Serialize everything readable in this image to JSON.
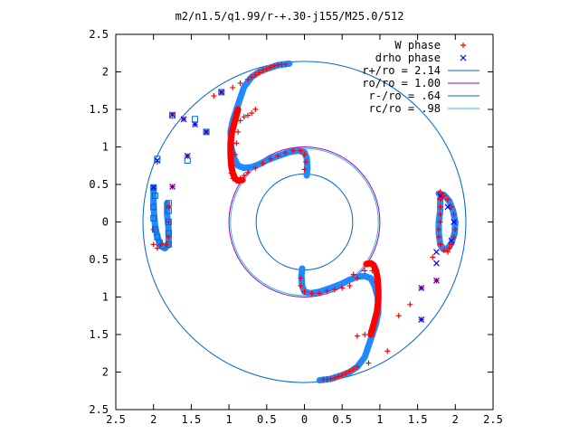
{
  "chart_data": {
    "type": "scatter",
    "title": "m2/n1.5/q1.99/r-+.30-j155/M25.0/512",
    "xlabel": "",
    "ylabel": "",
    "xlim": [
      -2.5,
      2.5
    ],
    "ylim": [
      -2.5,
      2.5
    ],
    "x_ticks": [
      {
        "value": -2.5,
        "label": "2.5"
      },
      {
        "value": -2,
        "label": "2"
      },
      {
        "value": -1.5,
        "label": "1.5"
      },
      {
        "value": -1,
        "label": "1"
      },
      {
        "value": -0.5,
        "label": "0.5"
      },
      {
        "value": 0,
        "label": "0"
      },
      {
        "value": 0.5,
        "label": "0.5"
      },
      {
        "value": 1,
        "label": "1"
      },
      {
        "value": 1.5,
        "label": "1.5"
      },
      {
        "value": 2,
        "label": "2"
      },
      {
        "value": 2.5,
        "label": "2.5"
      }
    ],
    "y_ticks": [
      {
        "value": 2.5,
        "label": "2.5"
      },
      {
        "value": 2,
        "label": "2"
      },
      {
        "value": 1.5,
        "label": "1.5"
      },
      {
        "value": 1,
        "label": "1"
      },
      {
        "value": 0.5,
        "label": "0.5"
      },
      {
        "value": 0,
        "label": "0"
      },
      {
        "value": -0.5,
        "label": "0.5"
      },
      {
        "value": -1,
        "label": "1"
      },
      {
        "value": -1.5,
        "label": "1.5"
      },
      {
        "value": -2,
        "label": "2"
      },
      {
        "value": -2.5,
        "label": "2.5"
      }
    ],
    "grid": false,
    "legend_position": "top-right",
    "series": [
      {
        "name": "W phase",
        "kind": "points",
        "marker": "plus",
        "color": "#ff0000",
        "points": [
          [
            -0.25,
            2.1
          ],
          [
            -0.3,
            2.1
          ],
          [
            -0.35,
            2.09
          ],
          [
            -0.4,
            2.08
          ],
          [
            -0.45,
            2.06
          ],
          [
            -0.5,
            2.04
          ],
          [
            -0.55,
            2.02
          ],
          [
            -0.6,
            1.99
          ],
          [
            -0.65,
            1.96
          ],
          [
            -0.7,
            1.93
          ],
          [
            -0.75,
            1.9
          ],
          [
            -0.85,
            1.85
          ],
          [
            -0.95,
            1.79
          ],
          [
            -1.1,
            1.73
          ],
          [
            -1.2,
            1.68
          ],
          [
            -1.3,
            1.2
          ],
          [
            -1.45,
            1.3
          ],
          [
            -1.6,
            1.37
          ],
          [
            -1.75,
            1.43
          ],
          [
            -1.55,
            0.88
          ],
          [
            -1.75,
            0.47
          ],
          [
            -1.95,
            0.8
          ],
          [
            -2.0,
            0.45
          ],
          [
            -0.65,
            1.5
          ],
          [
            -0.7,
            1.45
          ],
          [
            -0.75,
            1.42
          ],
          [
            -0.8,
            1.4
          ],
          [
            -0.85,
            1.35
          ],
          [
            -0.88,
            1.2
          ],
          [
            -0.9,
            1.05
          ],
          [
            -0.92,
            0.9
          ],
          [
            -0.95,
            0.75
          ],
          [
            -0.97,
            0.65
          ],
          [
            -0.95,
            0.58
          ],
          [
            -0.9,
            0.55
          ],
          [
            -0.85,
            0.58
          ],
          [
            -0.8,
            0.62
          ],
          [
            -0.75,
            0.66
          ],
          [
            -0.65,
            0.72
          ],
          [
            -0.55,
            0.78
          ],
          [
            -0.45,
            0.84
          ],
          [
            -0.35,
            0.88
          ],
          [
            -0.25,
            0.92
          ],
          [
            -0.15,
            0.95
          ],
          [
            -0.05,
            0.95
          ],
          [
            0.0,
            0.9
          ],
          [
            0.02,
            0.8
          ],
          [
            0.0,
            0.7
          ],
          [
            -1.8,
            0.2
          ],
          [
            -1.8,
            0.0
          ],
          [
            -1.8,
            -0.2
          ],
          [
            -1.82,
            -0.3
          ],
          [
            -2.0,
            -0.1
          ],
          [
            -2.0,
            -0.3
          ],
          [
            -1.95,
            -0.35
          ],
          [
            -1.9,
            -0.3
          ],
          [
            1.8,
            0.4
          ],
          [
            1.85,
            0.35
          ],
          [
            1.9,
            0.3
          ],
          [
            1.95,
            0.2
          ],
          [
            1.98,
            0.1
          ],
          [
            2.0,
            0.0
          ],
          [
            2.0,
            -0.1
          ],
          [
            1.98,
            -0.2
          ],
          [
            1.95,
            -0.3
          ],
          [
            1.92,
            -0.35
          ],
          [
            1.9,
            -0.4
          ],
          [
            1.85,
            -0.38
          ],
          [
            1.8,
            -0.3
          ],
          [
            1.78,
            -0.2
          ],
          [
            1.78,
            -0.1
          ],
          [
            1.8,
            0.0
          ],
          [
            1.8,
            0.1
          ],
          [
            1.8,
            0.2
          ],
          [
            1.8,
            0.3
          ],
          [
            1.7,
            -0.47
          ],
          [
            1.75,
            -0.78
          ],
          [
            1.55,
            -0.88
          ],
          [
            1.55,
            -1.3
          ],
          [
            1.4,
            -1.1
          ],
          [
            1.25,
            -1.25
          ],
          [
            1.1,
            -1.72
          ],
          [
            0.65,
            -0.7
          ],
          [
            0.7,
            -0.75
          ],
          [
            0.8,
            -0.65
          ],
          [
            0.9,
            -0.65
          ],
          [
            0.95,
            -0.8
          ],
          [
            0.98,
            -0.95
          ],
          [
            0.97,
            -1.1
          ],
          [
            0.95,
            -1.25
          ],
          [
            0.92,
            -1.38
          ],
          [
            0.88,
            -1.45
          ],
          [
            0.8,
            -1.5
          ],
          [
            0.7,
            -1.52
          ],
          [
            0.6,
            -0.85
          ],
          [
            0.5,
            -0.88
          ],
          [
            0.4,
            -0.9
          ],
          [
            0.3,
            -0.92
          ],
          [
            0.2,
            -0.95
          ],
          [
            0.1,
            -0.95
          ],
          [
            0.0,
            -0.93
          ],
          [
            -0.05,
            -0.85
          ],
          [
            -0.05,
            -0.75
          ],
          [
            0.25,
            -2.1
          ],
          [
            0.3,
            -2.1
          ],
          [
            0.35,
            -2.09
          ],
          [
            0.4,
            -2.08
          ],
          [
            0.45,
            -2.06
          ],
          [
            0.5,
            -2.04
          ],
          [
            0.55,
            -2.02
          ],
          [
            0.6,
            -1.99
          ],
          [
            0.65,
            -1.96
          ],
          [
            0.7,
            -1.93
          ],
          [
            0.85,
            -1.88
          ]
        ]
      },
      {
        "name": "drho phase",
        "kind": "points",
        "marker": "cross",
        "color": "#0000ff",
        "points": [
          [
            -1.1,
            1.73
          ],
          [
            -1.3,
            1.2
          ],
          [
            -1.45,
            1.3
          ],
          [
            -1.6,
            1.37
          ],
          [
            -1.75,
            1.43
          ],
          [
            -1.55,
            0.88
          ],
          [
            -1.95,
            0.82
          ],
          [
            -2.0,
            0.46
          ],
          [
            -1.75,
            0.47
          ],
          [
            1.75,
            -0.78
          ],
          [
            1.55,
            -0.88
          ],
          [
            1.55,
            -1.3
          ],
          [
            1.75,
            -0.4
          ],
          [
            1.75,
            -0.55
          ],
          [
            1.8,
            0.35
          ],
          [
            1.9,
            0.2
          ],
          [
            1.98,
            0.0
          ],
          [
            1.95,
            -0.25
          ]
        ]
      },
      {
        "name": "",
        "kind": "points",
        "marker": "square",
        "color": "#0066cc",
        "points": [
          [
            -1.1,
            1.73
          ],
          [
            -1.3,
            1.2
          ],
          [
            -1.45,
            1.37
          ],
          [
            -1.75,
            1.42
          ],
          [
            -1.55,
            0.82
          ],
          [
            -1.95,
            0.84
          ],
          [
            -2.0,
            0.46
          ],
          [
            -1.98,
            0.35
          ],
          [
            -2.0,
            0.2
          ],
          [
            -2.0,
            0.05
          ],
          [
            -1.98,
            -0.1
          ],
          [
            -1.95,
            -0.2
          ],
          [
            -1.92,
            -0.28
          ],
          [
            -1.88,
            -0.32
          ],
          [
            -1.8,
            -0.3
          ],
          [
            -1.8,
            -0.15
          ],
          [
            -1.8,
            0.0
          ],
          [
            -1.8,
            0.15
          ],
          [
            -1.8,
            0.25
          ]
        ]
      },
      {
        "name": "r+/ro = 2.14",
        "kind": "circle",
        "radius": 2.14,
        "color": "#0066cc"
      },
      {
        "name": "ro/ro = 1.00",
        "kind": "circle",
        "radius": 1.0,
        "color": "#9900cc"
      },
      {
        "name": "r-/ro = .64",
        "kind": "circle",
        "radius": 0.64,
        "color": "#0066cc"
      },
      {
        "name": "rc/ro = .98",
        "kind": "circle",
        "radius": 0.98,
        "color": "#33bbcc"
      }
    ],
    "bands": [
      {
        "color": "#2288ff",
        "path": [
          [
            -0.2,
            2.11
          ],
          [
            -0.35,
            2.09
          ],
          [
            -0.5,
            2.04
          ],
          [
            -0.6,
            2.0
          ],
          [
            -0.7,
            1.93
          ],
          [
            -0.8,
            1.8
          ],
          [
            -0.85,
            1.65
          ],
          [
            -0.9,
            1.5
          ],
          [
            -0.95,
            1.35
          ],
          [
            -0.98,
            1.2
          ],
          [
            -0.97,
            1.0
          ],
          [
            -0.93,
            0.85
          ],
          [
            -0.88,
            0.75
          ],
          [
            -0.8,
            0.72
          ],
          [
            -0.7,
            0.73
          ],
          [
            -0.6,
            0.77
          ],
          [
            -0.5,
            0.82
          ],
          [
            -0.35,
            0.88
          ],
          [
            -0.2,
            0.93
          ],
          [
            -0.08,
            0.95
          ],
          [
            0.0,
            0.93
          ],
          [
            0.03,
            0.85
          ],
          [
            0.04,
            0.72
          ],
          [
            0.03,
            0.62
          ]
        ]
      },
      {
        "color": "#2288ff",
        "path": [
          [
            0.2,
            -2.11
          ],
          [
            0.35,
            -2.09
          ],
          [
            0.5,
            -2.04
          ],
          [
            0.6,
            -2.0
          ],
          [
            0.7,
            -1.93
          ],
          [
            0.8,
            -1.8
          ],
          [
            0.85,
            -1.65
          ],
          [
            0.9,
            -1.5
          ],
          [
            0.95,
            -1.35
          ],
          [
            0.98,
            -1.2
          ],
          [
            0.97,
            -1.0
          ],
          [
            0.93,
            -0.85
          ],
          [
            0.88,
            -0.75
          ],
          [
            0.8,
            -0.72
          ],
          [
            0.7,
            -0.73
          ],
          [
            0.6,
            -0.77
          ],
          [
            0.5,
            -0.82
          ],
          [
            0.35,
            -0.88
          ],
          [
            0.2,
            -0.93
          ],
          [
            0.08,
            -0.95
          ],
          [
            0.0,
            -0.93
          ],
          [
            -0.03,
            -0.85
          ],
          [
            -0.04,
            -0.72
          ],
          [
            -0.03,
            -0.62
          ]
        ]
      },
      {
        "color": "#ff0000",
        "path": [
          [
            -0.88,
            1.5
          ],
          [
            -0.92,
            1.35
          ],
          [
            -0.96,
            1.2
          ],
          [
            -0.98,
            1.05
          ],
          [
            -0.98,
            0.9
          ],
          [
            -0.97,
            0.75
          ],
          [
            -0.95,
            0.65
          ],
          [
            -0.92,
            0.58
          ],
          [
            -0.88,
            0.55
          ],
          [
            -0.82,
            0.56
          ]
        ]
      },
      {
        "color": "#ff0000",
        "path": [
          [
            0.88,
            -1.5
          ],
          [
            0.92,
            -1.35
          ],
          [
            0.96,
            -1.2
          ],
          [
            0.98,
            -1.05
          ],
          [
            0.98,
            -0.9
          ],
          [
            0.97,
            -0.75
          ],
          [
            0.95,
            -0.65
          ],
          [
            0.92,
            -0.58
          ],
          [
            0.88,
            -0.55
          ],
          [
            0.82,
            -0.56
          ]
        ]
      },
      {
        "color": "#2288ff",
        "path": [
          [
            -2.0,
            0.45
          ],
          [
            -2.0,
            0.2
          ],
          [
            -1.98,
            -0.05
          ],
          [
            -1.95,
            -0.2
          ],
          [
            -1.9,
            -0.32
          ],
          [
            -1.85,
            -0.35
          ],
          [
            -1.8,
            -0.3
          ],
          [
            -1.8,
            -0.1
          ],
          [
            -1.82,
            0.1
          ],
          [
            -1.82,
            0.25
          ]
        ]
      },
      {
        "color": "#2288ff",
        "path": [
          [
            1.78,
            0.38
          ],
          [
            1.85,
            0.36
          ],
          [
            1.92,
            0.28
          ],
          [
            1.97,
            0.15
          ],
          [
            2.0,
            0.0
          ],
          [
            1.99,
            -0.15
          ],
          [
            1.95,
            -0.28
          ],
          [
            1.9,
            -0.35
          ],
          [
            1.84,
            -0.36
          ],
          [
            1.8,
            -0.3
          ],
          [
            1.78,
            -0.15
          ],
          [
            1.78,
            0.0
          ],
          [
            1.8,
            0.15
          ],
          [
            1.8,
            0.3
          ]
        ]
      }
    ]
  }
}
